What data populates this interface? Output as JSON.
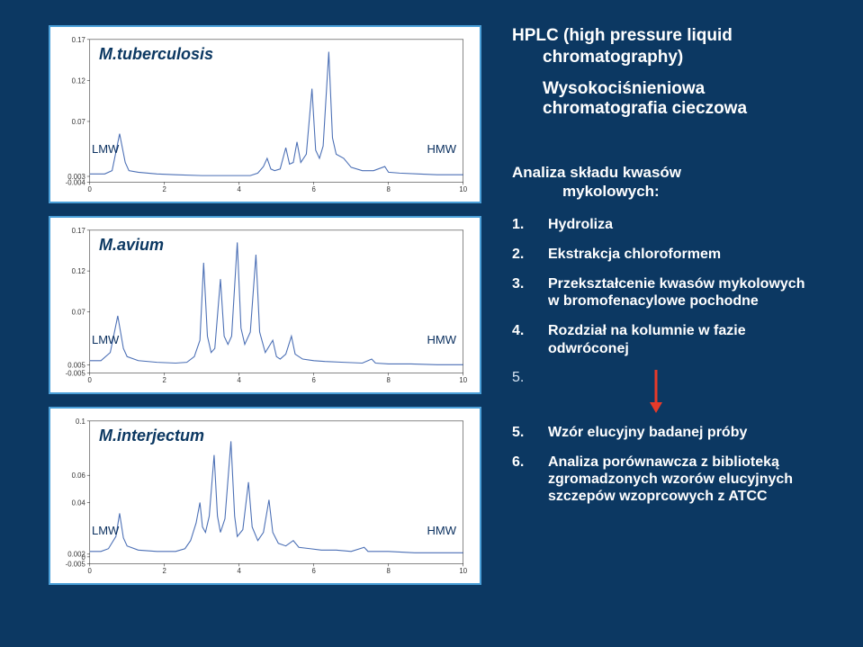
{
  "background_color": "#0c3862",
  "charts": [
    {
      "title": "M.tuberculosis",
      "lmw": "LMW",
      "hmw": "HMW",
      "type": "line",
      "line_color": "#4b6fb5",
      "line_width": 1.1,
      "axis_color": "#333333",
      "grid_color": "#cccccc",
      "ylim": [
        -0.004,
        0.17
      ],
      "yticks": [
        -0.004,
        0.003,
        0.07,
        0.12,
        0.17
      ],
      "xlim": [
        0,
        10
      ],
      "xticks": [
        0,
        2,
        4,
        6,
        8,
        10
      ],
      "data": [
        [
          0.0,
          0.006
        ],
        [
          0.2,
          0.006
        ],
        [
          0.4,
          0.006
        ],
        [
          0.6,
          0.01
        ],
        [
          0.8,
          0.055
        ],
        [
          0.95,
          0.02
        ],
        [
          1.05,
          0.01
        ],
        [
          1.3,
          0.008
        ],
        [
          1.8,
          0.006
        ],
        [
          2.3,
          0.005
        ],
        [
          3.0,
          0.004
        ],
        [
          3.6,
          0.004
        ],
        [
          4.0,
          0.004
        ],
        [
          4.3,
          0.004
        ],
        [
          4.5,
          0.007
        ],
        [
          4.65,
          0.015
        ],
        [
          4.75,
          0.025
        ],
        [
          4.85,
          0.012
        ],
        [
          4.95,
          0.01
        ],
        [
          5.1,
          0.012
        ],
        [
          5.25,
          0.038
        ],
        [
          5.35,
          0.018
        ],
        [
          5.45,
          0.02
        ],
        [
          5.55,
          0.045
        ],
        [
          5.65,
          0.02
        ],
        [
          5.8,
          0.03
        ],
        [
          5.95,
          0.11
        ],
        [
          6.05,
          0.035
        ],
        [
          6.15,
          0.025
        ],
        [
          6.25,
          0.04
        ],
        [
          6.4,
          0.155
        ],
        [
          6.5,
          0.05
        ],
        [
          6.6,
          0.03
        ],
        [
          6.8,
          0.025
        ],
        [
          7.0,
          0.014
        ],
        [
          7.3,
          0.01
        ],
        [
          7.6,
          0.01
        ],
        [
          7.9,
          0.015
        ],
        [
          8.0,
          0.008
        ],
        [
          8.3,
          0.007
        ],
        [
          8.8,
          0.006
        ],
        [
          9.3,
          0.005
        ],
        [
          10.0,
          0.005
        ]
      ]
    },
    {
      "title": "M.avium",
      "lmw": "LMW",
      "hmw": "HMW",
      "type": "line",
      "line_color": "#4b6fb5",
      "line_width": 1.1,
      "axis_color": "#333333",
      "grid_color": "#cccccc",
      "ylim": [
        -0.005,
        0.17
      ],
      "yticks": [
        -0.005,
        0.005,
        0.07,
        0.12,
        0.17
      ],
      "xlim": [
        0,
        10
      ],
      "xticks": [
        0,
        2,
        4,
        6,
        8,
        10
      ],
      "data": [
        [
          0.0,
          0.01
        ],
        [
          0.3,
          0.01
        ],
        [
          0.55,
          0.02
        ],
        [
          0.75,
          0.065
        ],
        [
          0.9,
          0.025
        ],
        [
          1.0,
          0.015
        ],
        [
          1.3,
          0.01
        ],
        [
          1.8,
          0.008
        ],
        [
          2.3,
          0.007
        ],
        [
          2.6,
          0.008
        ],
        [
          2.8,
          0.015
        ],
        [
          2.95,
          0.035
        ],
        [
          3.05,
          0.13
        ],
        [
          3.15,
          0.04
        ],
        [
          3.25,
          0.02
        ],
        [
          3.35,
          0.025
        ],
        [
          3.5,
          0.11
        ],
        [
          3.6,
          0.04
        ],
        [
          3.7,
          0.03
        ],
        [
          3.8,
          0.04
        ],
        [
          3.95,
          0.155
        ],
        [
          4.05,
          0.05
        ],
        [
          4.15,
          0.03
        ],
        [
          4.3,
          0.045
        ],
        [
          4.45,
          0.14
        ],
        [
          4.55,
          0.045
        ],
        [
          4.7,
          0.02
        ],
        [
          4.9,
          0.035
        ],
        [
          5.0,
          0.015
        ],
        [
          5.1,
          0.012
        ],
        [
          5.25,
          0.018
        ],
        [
          5.4,
          0.04
        ],
        [
          5.5,
          0.018
        ],
        [
          5.7,
          0.012
        ],
        [
          6.0,
          0.01
        ],
        [
          6.3,
          0.009
        ],
        [
          6.8,
          0.008
        ],
        [
          7.3,
          0.007
        ],
        [
          7.55,
          0.012
        ],
        [
          7.65,
          0.007
        ],
        [
          8.0,
          0.006
        ],
        [
          8.6,
          0.006
        ],
        [
          9.3,
          0.005
        ],
        [
          10.0,
          0.005
        ]
      ]
    },
    {
      "title": "M.interjectum",
      "lmw": "LMW",
      "hmw": "HMW",
      "type": "line",
      "line_color": "#4b6fb5",
      "line_width": 1.1,
      "axis_color": "#333333",
      "grid_color": "#cccccc",
      "ylim": [
        -0.005,
        0.1
      ],
      "yticks": [
        -0.005,
        0.0,
        0.002,
        0.04,
        0.06,
        0.1
      ],
      "xlim": [
        0,
        10
      ],
      "xticks": [
        0,
        2,
        4,
        6,
        8,
        10
      ],
      "data": [
        [
          0.0,
          0.004
        ],
        [
          0.3,
          0.004
        ],
        [
          0.5,
          0.006
        ],
        [
          0.7,
          0.015
        ],
        [
          0.8,
          0.032
        ],
        [
          0.9,
          0.014
        ],
        [
          1.0,
          0.008
        ],
        [
          1.3,
          0.005
        ],
        [
          1.8,
          0.004
        ],
        [
          2.3,
          0.004
        ],
        [
          2.55,
          0.006
        ],
        [
          2.7,
          0.012
        ],
        [
          2.85,
          0.025
        ],
        [
          2.95,
          0.04
        ],
        [
          3.02,
          0.022
        ],
        [
          3.1,
          0.018
        ],
        [
          3.2,
          0.03
        ],
        [
          3.33,
          0.075
        ],
        [
          3.42,
          0.03
        ],
        [
          3.5,
          0.018
        ],
        [
          3.62,
          0.028
        ],
        [
          3.78,
          0.085
        ],
        [
          3.88,
          0.03
        ],
        [
          3.95,
          0.015
        ],
        [
          4.1,
          0.02
        ],
        [
          4.25,
          0.055
        ],
        [
          4.35,
          0.022
        ],
        [
          4.5,
          0.012
        ],
        [
          4.65,
          0.018
        ],
        [
          4.8,
          0.042
        ],
        [
          4.9,
          0.018
        ],
        [
          5.05,
          0.01
        ],
        [
          5.25,
          0.008
        ],
        [
          5.45,
          0.012
        ],
        [
          5.6,
          0.007
        ],
        [
          5.9,
          0.006
        ],
        [
          6.2,
          0.005
        ],
        [
          6.6,
          0.005
        ],
        [
          7.0,
          0.004
        ],
        [
          7.35,
          0.007
        ],
        [
          7.45,
          0.004
        ],
        [
          8.0,
          0.004
        ],
        [
          8.7,
          0.003
        ],
        [
          9.4,
          0.003
        ],
        [
          10.0,
          0.003
        ]
      ]
    }
  ],
  "right": {
    "title_line1": "HPLC (high pressure liquid",
    "title_line2": "chromatography)",
    "subtitle_line1": "Wysokociśnieniowa",
    "subtitle_line2": "chromatografia cieczowa",
    "analysis_line1": "Analiza składu kwasów",
    "analysis_line2": "mykolowych:",
    "steps": [
      {
        "num": "1.",
        "text": "Hydroliza"
      },
      {
        "num": "2.",
        "text": "Ekstrakcja chloroformem"
      },
      {
        "num": "3.",
        "text": "Przekształcenie kwasów mykolowych w bromofenacylowe pochodne"
      },
      {
        "num": "4.",
        "text": "Rozdział na kolumnie w fazie odwróconej"
      }
    ],
    "arrow_num": "5.",
    "arrow_color": "#e83a2a",
    "steps2": [
      {
        "num": "5.",
        "text": "Wzór elucyjny badanej próby"
      },
      {
        "num": "6.",
        "text": "Analiza porównawcza z biblioteką zgromadzonych wzorów elucyjnych szczepów wzoprcowych z ATCC"
      }
    ]
  }
}
